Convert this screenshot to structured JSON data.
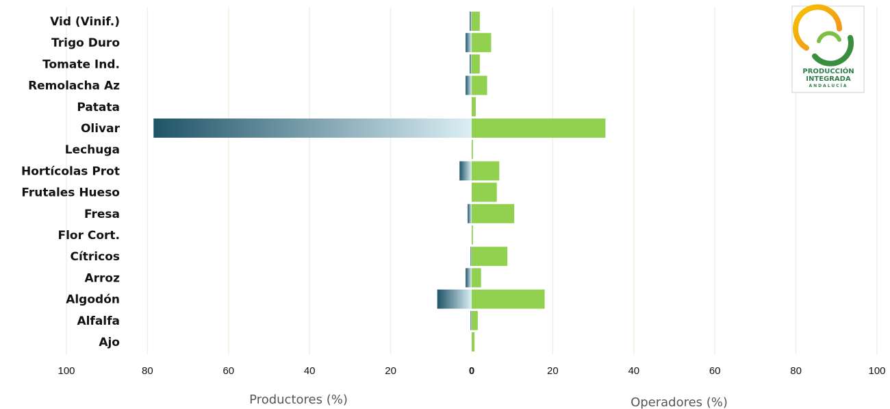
{
  "chart_data": {
    "type": "bar",
    "orientation": "horizontal-butterfly",
    "categories": [
      "Vid (Vinif.)",
      "Trigo Duro",
      "Tomate Ind.",
      "Remolacha Az",
      "Patata",
      "Olivar",
      "Lechuga",
      "Hortícolas Prot",
      "Frutales Hueso",
      "Fresa",
      "Flor Cort.",
      "Cítricos",
      "Arroz",
      "Algodón",
      "Alfalfa",
      "Ajo"
    ],
    "series": [
      {
        "name": "Productores (%)",
        "side": "left",
        "values": [
          0.5,
          1.5,
          0.5,
          1.5,
          0,
          78.5,
          0,
          3,
          0,
          1,
          0,
          0.3,
          1.5,
          8.5,
          0.3,
          0
        ],
        "color_dark": "#1f5468",
        "color_light": "#dbeef4"
      },
      {
        "name": "Operadores (%)",
        "side": "right",
        "values": [
          2,
          4.8,
          2,
          3.8,
          1,
          33,
          0.3,
          6.8,
          6.2,
          10.5,
          0.3,
          8.8,
          2.3,
          18,
          1.5,
          0.7
        ],
        "color": "#92d050"
      }
    ],
    "xlim": [
      -100,
      100
    ],
    "ticks": [
      "100",
      "80",
      "60",
      "40",
      "20",
      "0",
      "20",
      "40",
      "60",
      "80",
      "100"
    ],
    "xlabel_left": "Productores (%)",
    "xlabel_right": "Operadores (%)",
    "grid": true,
    "grid_color": "#eef2e2"
  },
  "logo": {
    "line1": "PRODUCCIÓN",
    "line2": "INTEGRADA",
    "line3": "ANDALUCÍA",
    "accent": "#f5a623",
    "brand": "#2f7d4a"
  }
}
